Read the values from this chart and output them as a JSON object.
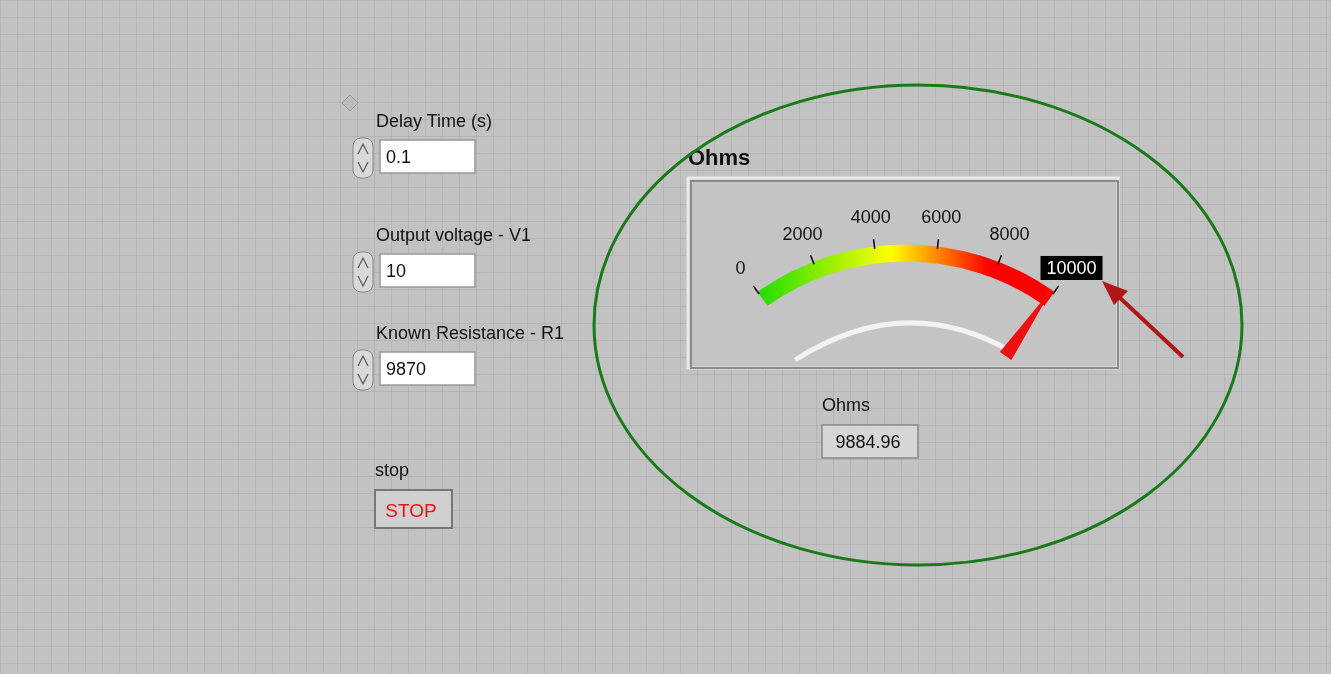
{
  "chart_data": {
    "type": "other",
    "title": "Ohms",
    "xlabel": "Ohms",
    "values": [
      9884.96
    ],
    "data_labels": true,
    "annotations": [
      "Delay Time (s)",
      "0.1",
      "Output voltage - V1",
      "10",
      "Known Resistance - R1",
      "9870",
      "stop",
      "STOP",
      "0",
      "2000",
      "4000",
      "6000",
      "8000",
      "10000"
    ]
  }
}
